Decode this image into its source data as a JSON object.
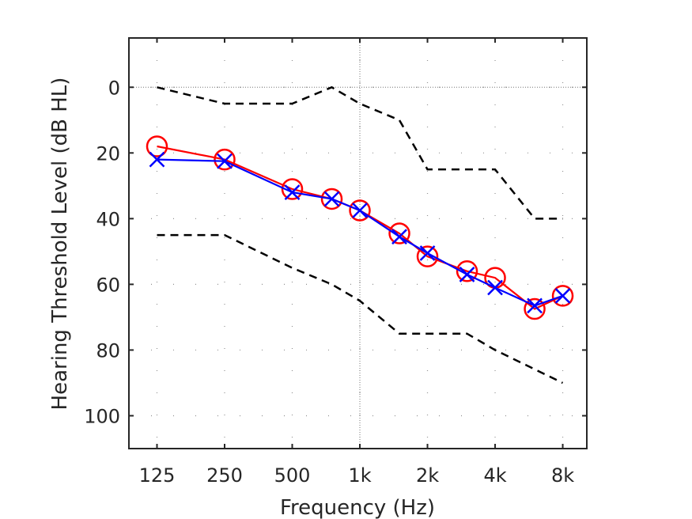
{
  "chart_data": {
    "type": "line",
    "xlabel": "Frequency (Hz)",
    "ylabel": "Hearing Threshold Level (dB HL)",
    "x_scale": "log2",
    "y_reversed": true,
    "xlim": [
      93.75,
      10240
    ],
    "ylim": [
      -15,
      110
    ],
    "xticks": [
      125,
      250,
      500,
      1000,
      2000,
      4000,
      8000
    ],
    "xtick_labels": [
      "125",
      "250",
      "500",
      "1k",
      "2k",
      "4k",
      "8k"
    ],
    "yticks": [
      0,
      20,
      40,
      60,
      80,
      100
    ],
    "ytick_labels": [
      "0",
      "20",
      "40",
      "60",
      "80",
      "100"
    ],
    "grid": "dotted",
    "series": [
      {
        "marker": "circle",
        "color": "#ff0000",
        "points": [
          [
            125,
            18
          ],
          [
            250,
            22
          ],
          [
            500,
            31
          ],
          [
            750,
            34
          ],
          [
            1000,
            37.5
          ],
          [
            1500,
            44.5
          ],
          [
            2000,
            51.5
          ],
          [
            3000,
            56
          ],
          [
            4000,
            58
          ],
          [
            6000,
            67.5
          ],
          [
            8000,
            63.5
          ]
        ]
      },
      {
        "marker": "x",
        "color": "#0000ff",
        "points": [
          [
            125,
            22
          ],
          [
            250,
            22.5
          ],
          [
            500,
            32
          ],
          [
            750,
            34
          ],
          [
            1000,
            37.5
          ],
          [
            1500,
            45.5
          ],
          [
            2000,
            50.5
          ],
          [
            3000,
            57
          ],
          [
            4000,
            61
          ],
          [
            6000,
            66.5
          ],
          [
            8000,
            63.5
          ]
        ]
      },
      {
        "style": "dashed",
        "color": "#000000",
        "points": [
          [
            125,
            0
          ],
          [
            250,
            5
          ],
          [
            500,
            5
          ],
          [
            750,
            0
          ],
          [
            1000,
            5
          ],
          [
            1500,
            10
          ],
          [
            2000,
            25
          ],
          [
            4000,
            25
          ],
          [
            6000,
            40
          ],
          [
            8000,
            40
          ]
        ]
      },
      {
        "style": "dashed",
        "color": "#000000",
        "points": [
          [
            125,
            45
          ],
          [
            250,
            45
          ],
          [
            500,
            55
          ],
          [
            750,
            60
          ],
          [
            1000,
            65
          ],
          [
            1500,
            75
          ],
          [
            3000,
            75
          ],
          [
            4000,
            80
          ],
          [
            8000,
            90
          ]
        ]
      }
    ]
  }
}
